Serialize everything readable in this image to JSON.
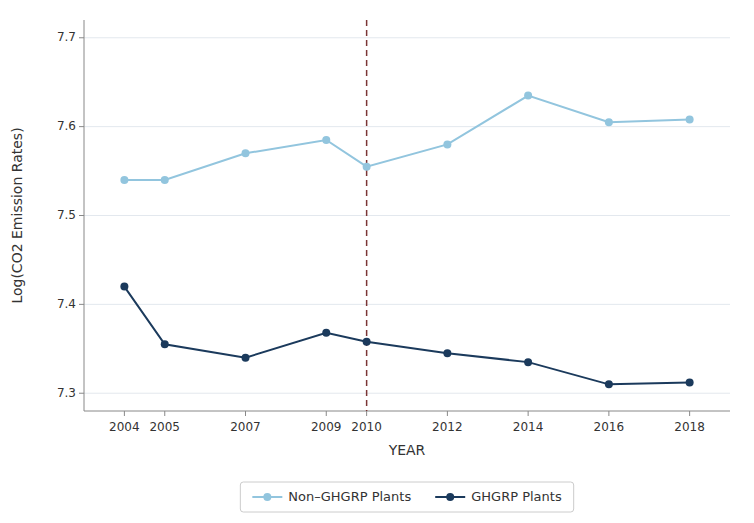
{
  "chart_data": {
    "type": "line",
    "x_label": "YEAR",
    "y_label": "Log(CO2 Emission Rates)",
    "x": [
      2004,
      2005,
      2007,
      2009,
      2010,
      2012,
      2014,
      2016,
      2018
    ],
    "series": [
      {
        "name": "Non–GHGRP Plants",
        "color": "#92C5DE",
        "values": [
          7.54,
          7.54,
          7.57,
          7.585,
          7.555,
          7.58,
          7.635,
          7.605,
          7.608
        ]
      },
      {
        "name": "GHGRP Plants",
        "color": "#1B3A5C",
        "values": [
          7.42,
          7.355,
          7.34,
          7.368,
          7.358,
          7.345,
          7.335,
          7.31,
          7.312
        ]
      }
    ],
    "marker": "circle",
    "reference_lines": [
      {
        "x": 2010,
        "color": "#7B3535",
        "line_style": "dashed"
      }
    ],
    "xlim": [
      2003,
      2019
    ],
    "xticks": [
      2004,
      2005,
      2007,
      2009,
      2010,
      2012,
      2014,
      2016,
      2018
    ],
    "ylim": [
      7.28,
      7.72
    ],
    "yticks": [
      7.3,
      7.4,
      7.5,
      7.6,
      7.7
    ],
    "grid": true,
    "legend": "bottom"
  }
}
